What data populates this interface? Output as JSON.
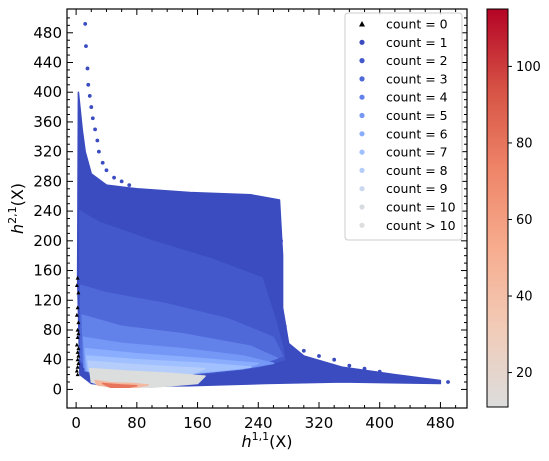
{
  "chart_data": {
    "type": "scatter",
    "xlabel": "h^{1,1}(X)",
    "ylabel": "h^{2,1}(X)",
    "xlim": [
      -12,
      515
    ],
    "ylim": [
      -25,
      512
    ],
    "x_ticks": [
      0,
      80,
      160,
      240,
      320,
      400,
      480
    ],
    "y_ticks": [
      0,
      40,
      80,
      120,
      160,
      200,
      240,
      280,
      320,
      360,
      400,
      440,
      480
    ],
    "legend": {
      "placement": "top-right",
      "entries": [
        {
          "label": "count = 0",
          "marker": "triangle",
          "color": "#000000"
        },
        {
          "label": "count = 1",
          "marker": "circle",
          "color": "#3b4cc0"
        },
        {
          "label": "count = 2",
          "marker": "circle",
          "color": "#4358cb"
        },
        {
          "label": "count = 3",
          "marker": "circle",
          "color": "#4f69d9"
        },
        {
          "label": "count = 4",
          "marker": "circle",
          "color": "#6282ea"
        },
        {
          "label": "count = 5",
          "marker": "circle",
          "color": "#7597f6"
        },
        {
          "label": "count = 6",
          "marker": "circle",
          "color": "#8badfd"
        },
        {
          "label": "count = 7",
          "marker": "circle",
          "color": "#a1c0ff"
        },
        {
          "label": "count = 8",
          "marker": "circle",
          "color": "#b5cdfa"
        },
        {
          "label": "count = 9",
          "marker": "circle",
          "color": "#cad8ef"
        },
        {
          "label": "count = 10",
          "marker": "circle",
          "color": "#d8dce2"
        },
        {
          "label": "count > 10",
          "marker": "circle",
          "color": "#dcdddd"
        }
      ]
    },
    "colorbar": {
      "range": [
        11,
        115
      ],
      "ticks": [
        20,
        40,
        60,
        80,
        100
      ],
      "colormap": [
        "#dcdddd",
        "#f2cbb7",
        "#f7ac8e",
        "#ee8468",
        "#d65244",
        "#b40426"
      ]
    },
    "regions": [
      {
        "series": "count = 1",
        "color": "#3b4cc0",
        "polygon": [
          [
            3,
            400
          ],
          [
            8,
            350
          ],
          [
            12,
            320
          ],
          [
            20,
            290
          ],
          [
            40,
            275
          ],
          [
            80,
            270
          ],
          [
            150,
            265
          ],
          [
            230,
            262
          ],
          [
            268,
            255
          ],
          [
            272,
            180
          ],
          [
            272,
            110
          ],
          [
            280,
            62
          ],
          [
            300,
            45
          ],
          [
            350,
            30
          ],
          [
            420,
            20
          ],
          [
            480,
            12
          ],
          [
            480,
            8
          ],
          [
            350,
            10
          ],
          [
            250,
            8
          ],
          [
            150,
            5
          ],
          [
            60,
            4
          ],
          [
            20,
            8
          ],
          [
            5,
            20
          ],
          [
            2,
            150
          ]
        ]
      },
      {
        "series": "count = 2",
        "color": "#4358cb",
        "polygon": [
          [
            5,
            240
          ],
          [
            30,
            225
          ],
          [
            100,
            200
          ],
          [
            180,
            175
          ],
          [
            245,
            150
          ],
          [
            262,
            95
          ],
          [
            272,
            58
          ],
          [
            275,
            40
          ],
          [
            240,
            30
          ],
          [
            160,
            20
          ],
          [
            80,
            15
          ],
          [
            20,
            18
          ],
          [
            5,
            40
          ]
        ]
      },
      {
        "series": "count = 3",
        "color": "#4f69d9",
        "polygon": [
          [
            6,
            140
          ],
          [
            40,
            130
          ],
          [
            120,
            115
          ],
          [
            200,
            95
          ],
          [
            260,
            70
          ],
          [
            272,
            45
          ],
          [
            230,
            30
          ],
          [
            150,
            22
          ],
          [
            80,
            18
          ],
          [
            20,
            18
          ],
          [
            6,
            40
          ]
        ]
      },
      {
        "series": "count = 4",
        "color": "#6282ea",
        "polygon": [
          [
            8,
            100
          ],
          [
            60,
            85
          ],
          [
            140,
            75
          ],
          [
            230,
            58
          ],
          [
            265,
            42
          ],
          [
            230,
            30
          ],
          [
            150,
            22
          ],
          [
            60,
            18
          ],
          [
            10,
            30
          ]
        ]
      },
      {
        "series": "count = 5",
        "color": "#7597f6",
        "polygon": [
          [
            10,
            70
          ],
          [
            60,
            62
          ],
          [
            140,
            55
          ],
          [
            220,
            45
          ],
          [
            260,
            35
          ],
          [
            220,
            28
          ],
          [
            140,
            20
          ],
          [
            60,
            18
          ],
          [
            12,
            25
          ]
        ]
      },
      {
        "series": "count = 6",
        "color": "#8badfd",
        "polygon": [
          [
            12,
            55
          ],
          [
            80,
            48
          ],
          [
            160,
            42
          ],
          [
            240,
            35
          ],
          [
            220,
            28
          ],
          [
            140,
            20
          ],
          [
            60,
            18
          ],
          [
            14,
            25
          ]
        ]
      },
      {
        "series": "count = 7",
        "color": "#a1c0ff",
        "polygon": [
          [
            14,
            45
          ],
          [
            80,
            40
          ],
          [
            170,
            35
          ],
          [
            230,
            30
          ],
          [
            150,
            22
          ],
          [
            60,
            19
          ],
          [
            16,
            25
          ]
        ]
      },
      {
        "series": "count = 8",
        "color": "#b5cdfa",
        "polygon": [
          [
            16,
            38
          ],
          [
            80,
            33
          ],
          [
            170,
            28
          ],
          [
            150,
            20
          ],
          [
            60,
            19
          ],
          [
            18,
            24
          ]
        ]
      },
      {
        "series": "count > 10",
        "color": "#dcdddd",
        "polygon": [
          [
            18,
            28
          ],
          [
            60,
            25
          ],
          [
            120,
            22
          ],
          [
            170,
            18
          ],
          [
            160,
            8
          ],
          [
            100,
            3
          ],
          [
            40,
            4
          ],
          [
            20,
            10
          ]
        ]
      },
      {
        "series": "count > 10",
        "color": "#f2b8a0",
        "polygon": [
          [
            25,
            12
          ],
          [
            45,
            9
          ],
          [
            75,
            8
          ],
          [
            95,
            6
          ],
          [
            80,
            3
          ],
          [
            50,
            3
          ],
          [
            28,
            6
          ]
        ]
      },
      {
        "series": "count > 10",
        "color": "#e7745b",
        "polygon": [
          [
            35,
            8
          ],
          [
            60,
            6
          ],
          [
            80,
            5
          ],
          [
            70,
            3
          ],
          [
            45,
            3
          ]
        ]
      }
    ],
    "spike_points": [
      {
        "series": "count = 1",
        "color": "#3b4cc0",
        "points": [
          [
            12,
            492
          ],
          [
            13,
            462
          ],
          [
            15,
            432
          ],
          [
            16,
            410
          ],
          [
            18,
            395
          ],
          [
            20,
            380
          ],
          [
            22,
            365
          ],
          [
            25,
            350
          ],
          [
            28,
            335
          ],
          [
            30,
            320
          ],
          [
            35,
            305
          ],
          [
            40,
            295
          ],
          [
            50,
            285
          ],
          [
            60,
            280
          ],
          [
            70,
            275
          ]
        ]
      },
      {
        "series": "count = 1",
        "color": "#3b4cc0",
        "points": [
          [
            165,
            255
          ],
          [
            180,
            252
          ],
          [
            200,
            252
          ],
          [
            225,
            252
          ],
          [
            250,
            250
          ],
          [
            265,
            250
          ],
          [
            200,
            238
          ],
          [
            230,
            236
          ],
          [
            245,
            220
          ],
          [
            260,
            218
          ],
          [
            270,
            200
          ],
          [
            265,
            190
          ],
          [
            270,
            175
          ],
          [
            255,
            150
          ],
          [
            262,
            120
          ],
          [
            270,
            100
          ],
          [
            275,
            85
          ]
        ]
      },
      {
        "series": "count = 1",
        "color": "#3b4cc0",
        "points": [
          [
            300,
            52
          ],
          [
            320,
            45
          ],
          [
            340,
            40
          ],
          [
            360,
            32
          ],
          [
            380,
            28
          ],
          [
            400,
            24
          ],
          [
            420,
            18
          ],
          [
            440,
            14
          ],
          [
            460,
            12
          ],
          [
            490,
            10
          ],
          [
            310,
            30
          ],
          [
            330,
            25
          ],
          [
            350,
            20
          ],
          [
            370,
            18
          ]
        ]
      }
    ],
    "count0_points": [
      [
        2,
        150
      ],
      [
        1,
        140
      ],
      [
        3,
        130
      ],
      [
        2,
        110
      ],
      [
        1,
        100
      ],
      [
        3,
        90
      ],
      [
        2,
        80
      ],
      [
        3,
        75
      ],
      [
        2,
        70
      ],
      [
        1,
        60
      ],
      [
        3,
        55
      ],
      [
        2,
        50
      ],
      [
        3,
        45
      ],
      [
        2,
        40
      ],
      [
        3,
        35
      ],
      [
        2,
        30
      ],
      [
        1,
        25
      ],
      [
        2,
        20
      ]
    ]
  }
}
